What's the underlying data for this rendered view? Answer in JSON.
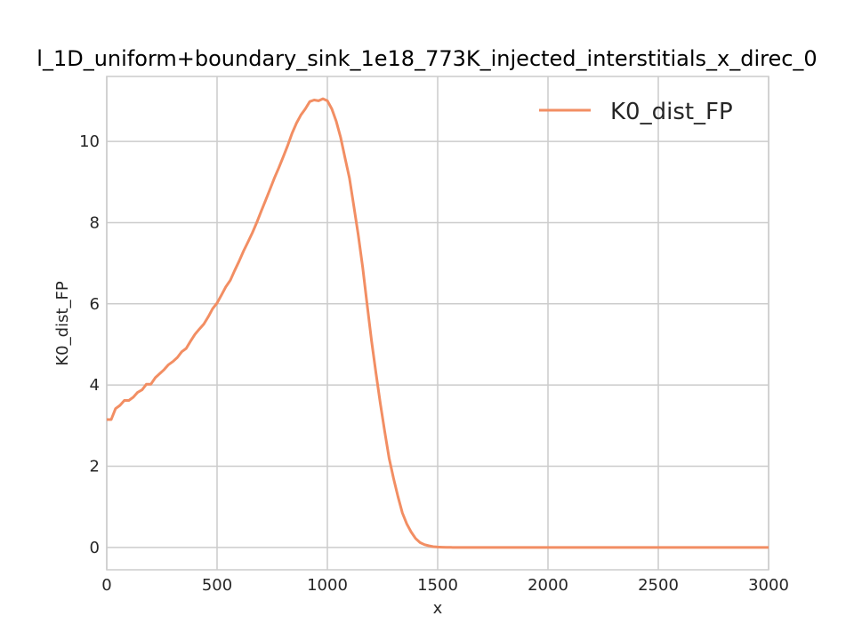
{
  "chart_data": {
    "type": "line",
    "title": "l_1D_uniform+boundary_sink_1e18_773K_injected_interstitials_x_direc_0",
    "xlabel": "x",
    "ylabel": "K0_dist_FP",
    "xlim": [
      0,
      3000
    ],
    "ylim": [
      -0.55,
      11.6
    ],
    "xticks": [
      0,
      500,
      1000,
      1500,
      2000,
      2500,
      3000
    ],
    "yticks": [
      0,
      2,
      4,
      6,
      8,
      10
    ],
    "grid": true,
    "legend_position": "top-right",
    "series": [
      {
        "name": "K0_dist_FP",
        "color": "#f28e63",
        "x": [
          0,
          20,
          40,
          60,
          80,
          100,
          120,
          140,
          160,
          180,
          200,
          220,
          240,
          260,
          280,
          300,
          320,
          340,
          360,
          380,
          400,
          420,
          440,
          460,
          480,
          500,
          520,
          540,
          560,
          580,
          600,
          620,
          640,
          660,
          680,
          700,
          720,
          740,
          760,
          780,
          800,
          820,
          840,
          860,
          880,
          900,
          920,
          940,
          960,
          980,
          1000,
          1020,
          1040,
          1060,
          1080,
          1100,
          1120,
          1140,
          1160,
          1180,
          1200,
          1220,
          1240,
          1260,
          1280,
          1300,
          1320,
          1340,
          1360,
          1380,
          1400,
          1420,
          1440,
          1460,
          1480,
          1500,
          1520,
          1540,
          1560,
          1580,
          1600,
          1700,
          1800,
          2000,
          2200,
          2500,
          2800,
          3000
        ],
        "y": [
          3.15,
          3.15,
          3.42,
          3.5,
          3.62,
          3.62,
          3.7,
          3.82,
          3.88,
          4.02,
          4.02,
          4.18,
          4.28,
          4.38,
          4.5,
          4.58,
          4.68,
          4.82,
          4.9,
          5.08,
          5.25,
          5.38,
          5.5,
          5.68,
          5.88,
          6.02,
          6.22,
          6.42,
          6.58,
          6.82,
          7.05,
          7.3,
          7.52,
          7.75,
          8.0,
          8.28,
          8.55,
          8.82,
          9.1,
          9.35,
          9.62,
          9.9,
          10.2,
          10.45,
          10.65,
          10.8,
          10.98,
          11.02,
          11.0,
          11.05,
          11.0,
          10.8,
          10.5,
          10.1,
          9.6,
          9.1,
          8.4,
          7.7,
          6.9,
          6.0,
          5.1,
          4.3,
          3.55,
          2.85,
          2.2,
          1.7,
          1.25,
          0.85,
          0.58,
          0.38,
          0.22,
          0.12,
          0.07,
          0.04,
          0.02,
          0.01,
          0.005,
          0.002,
          0.001,
          0.0,
          0.0,
          0.0,
          0.0,
          0.0,
          0.0,
          0.0,
          0.0,
          0.0
        ]
      }
    ]
  }
}
